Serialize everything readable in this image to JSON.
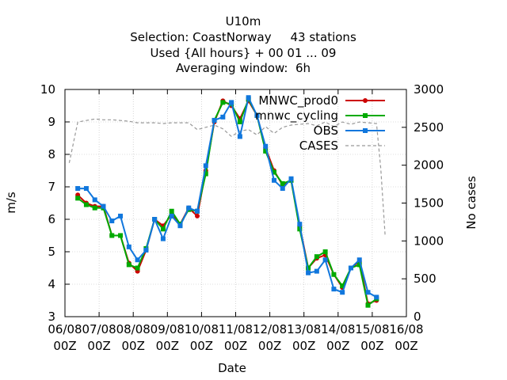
{
  "chart_data": {
    "type": "line",
    "title_lines": [
      "U10m",
      "Selection: CoastNorway     43 stations",
      "Used {All hours} + 00 01 ... 09",
      "Averaging window:  6h"
    ],
    "xlabel": "Date",
    "ylabel": "m/s",
    "y2label": "No cases",
    "xlim": [
      0,
      240
    ],
    "ylim": [
      3,
      10
    ],
    "y2lim": [
      0,
      3000
    ],
    "x_ticks": [
      {
        "x": 0,
        "top": "06/08",
        "bottom": "00Z"
      },
      {
        "x": 24,
        "top": "07/08",
        "bottom": "00Z"
      },
      {
        "x": 48,
        "top": "08/08",
        "bottom": "00Z"
      },
      {
        "x": 72,
        "top": "09/08",
        "bottom": "00Z"
      },
      {
        "x": 96,
        "top": "10/08",
        "bottom": "00Z"
      },
      {
        "x": 120,
        "top": "11/08",
        "bottom": "00Z"
      },
      {
        "x": 144,
        "top": "12/08",
        "bottom": "00Z"
      },
      {
        "x": 168,
        "top": "13/08",
        "bottom": "00Z"
      },
      {
        "x": 192,
        "top": "14/08",
        "bottom": "00Z"
      },
      {
        "x": 216,
        "top": "15/08",
        "bottom": "00Z"
      },
      {
        "x": 240,
        "top": "16/08",
        "bottom": "00Z"
      }
    ],
    "y_ticks": [
      "3",
      "4",
      "5",
      "6",
      "7",
      "8",
      "9",
      "10"
    ],
    "y2_ticks": [
      "0",
      "500",
      "1000",
      "1500",
      "2000",
      "2500",
      "3000"
    ],
    "legend_position": "top-right",
    "x": [
      9,
      15,
      21,
      27,
      33,
      39,
      45,
      51,
      57,
      63,
      69,
      75,
      81,
      87,
      93,
      99,
      105,
      111,
      117,
      123,
      129,
      135,
      141,
      147,
      153,
      159,
      165,
      171,
      177,
      183,
      189,
      195,
      201,
      207,
      213,
      219,
      225
    ],
    "series": [
      {
        "name": "MNWC_prod0",
        "color": "#cc0000",
        "marker": "circle",
        "values": [
          6.75,
          6.5,
          6.4,
          6.4,
          5.5,
          5.5,
          4.65,
          4.4,
          5.05,
          6.0,
          5.8,
          6.15,
          5.85,
          6.35,
          6.1,
          7.5,
          9.0,
          9.65,
          9.5,
          9.1,
          9.65,
          9.2,
          8.2,
          7.5,
          7.05,
          7.2,
          5.8,
          4.5,
          4.8,
          4.9,
          4.3,
          3.9,
          4.5,
          4.7,
          3.4,
          3.5,
          null
        ]
      },
      {
        "name": "mnwc_cycling",
        "color": "#00aa00",
        "marker": "square",
        "values": [
          6.65,
          6.45,
          6.35,
          6.35,
          5.5,
          5.5,
          4.6,
          4.5,
          5.1,
          6.0,
          5.7,
          6.25,
          5.85,
          6.3,
          6.25,
          7.4,
          9.05,
          9.6,
          9.55,
          9.0,
          9.7,
          9.2,
          8.1,
          7.45,
          7.1,
          7.2,
          5.7,
          4.5,
          4.85,
          5.0,
          4.3,
          3.95,
          4.5,
          4.6,
          3.35,
          3.55,
          null
        ]
      },
      {
        "name": "OBS",
        "color": "#1177dd",
        "marker": "square",
        "values": [
          6.95,
          6.95,
          6.6,
          6.4,
          5.95,
          6.1,
          5.15,
          4.75,
          5.05,
          6.0,
          5.4,
          6.1,
          5.8,
          6.35,
          6.25,
          7.65,
          9.05,
          9.15,
          9.6,
          8.55,
          9.75,
          9.2,
          8.25,
          7.2,
          6.95,
          7.25,
          5.85,
          4.35,
          4.4,
          4.75,
          3.85,
          3.75,
          4.5,
          4.75,
          3.75,
          3.6,
          null
        ]
      }
    ],
    "cases": {
      "name": "CASES",
      "color": "#999999",
      "x": [
        3,
        9,
        15,
        21,
        27,
        33,
        39,
        45,
        51,
        57,
        63,
        69,
        75,
        81,
        87,
        93,
        99,
        105,
        111,
        117,
        123,
        129,
        135,
        141,
        147,
        153,
        159,
        165,
        171,
        177,
        183,
        189,
        195,
        201,
        207,
        213,
        219,
        222,
        225
      ],
      "values": [
        2030,
        2570,
        2590,
        2610,
        2600,
        2600,
        2590,
        2580,
        2560,
        2560,
        2560,
        2550,
        2560,
        2560,
        2560,
        2470,
        2500,
        2530,
        2480,
        2380,
        2450,
        2470,
        2400,
        2510,
        2420,
        2500,
        2530,
        2540,
        2550,
        2520,
        2570,
        2510,
        2570,
        2540,
        2570,
        2560,
        2550,
        1950,
        1080
      ]
    }
  }
}
